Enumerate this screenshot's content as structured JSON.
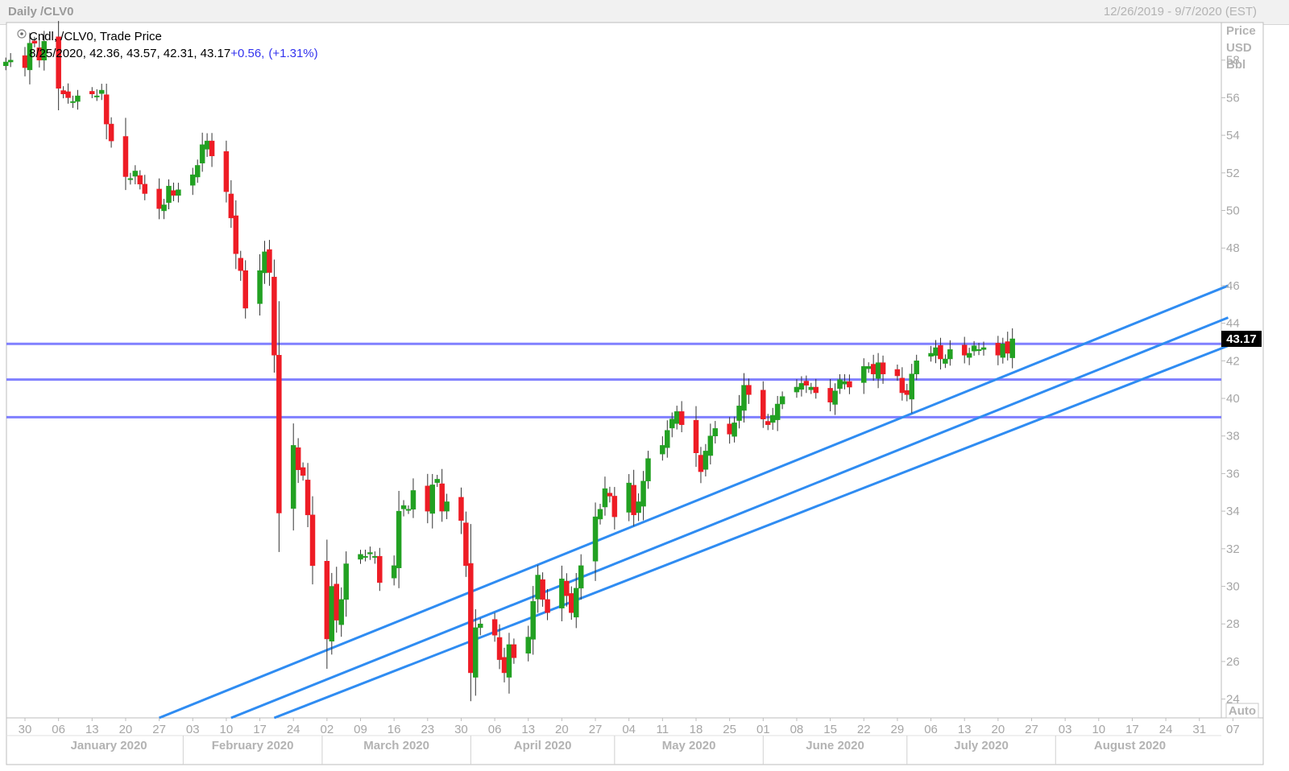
{
  "window": {
    "title": "Daily /CLV0",
    "date_range": "12/26/2019 - 9/7/2020 (EST)"
  },
  "legend": {
    "line1": "Cndl, /CLV0, Trade Price",
    "ohlc": "8/25/2020, 42.36, 43.57, 42.31, 43.17",
    "change": "+0.56,",
    "change_pct": "(+1.31%)"
  },
  "axis": {
    "title_lines": [
      "Price",
      "USD",
      "Bbl"
    ],
    "auto_label": "Auto",
    "last_price_label": "43.17"
  },
  "colors": {
    "up": "#22a122",
    "down": "#ee1c25",
    "hline": "#8080ff",
    "trendline": "#2f8cf2",
    "change": "#3333ee",
    "last_price_bg": "#000000"
  },
  "chart_data": {
    "type": "candlestick",
    "symbol": "/CLV0",
    "ylim": [
      23,
      60
    ],
    "yticks": [
      24,
      26,
      28,
      30,
      32,
      34,
      36,
      38,
      40,
      42,
      44,
      46,
      48,
      50,
      52,
      54,
      56,
      58
    ],
    "x_day_labels": [
      "30",
      "06",
      "13",
      "20",
      "27",
      "03",
      "10",
      "17",
      "24",
      "02",
      "09",
      "16",
      "23",
      "30",
      "06",
      "13",
      "20",
      "27",
      "04",
      "11",
      "18",
      "25",
      "01",
      "08",
      "15",
      "22",
      "29",
      "06",
      "13",
      "20",
      "27",
      "03",
      "10",
      "17",
      "24",
      "31",
      "07"
    ],
    "months": [
      "January 2020",
      "February 2020",
      "March 2020",
      "April 2020",
      "May 2020",
      "June 2020",
      "July 2020",
      "August 2020"
    ],
    "start_date": "2019-12-26",
    "closes": [
      57.9,
      58.0,
      57.6,
      58.9,
      58.9,
      58.0,
      59.0,
      56.5,
      56.2,
      56.0,
      55.8,
      56.1,
      56.2,
      56.1,
      56.4,
      54.6,
      53.7,
      51.8,
      51.7,
      52.1,
      51.4,
      50.9,
      50.1,
      50.3,
      51.3,
      50.8,
      51.1,
      51.9,
      52.4,
      53.5,
      53.7,
      52.9,
      51.0,
      49.6,
      47.7,
      46.8,
      44.8,
      46.8,
      47.8,
      46.7,
      42.3,
      33.9,
      37.5,
      36.2,
      35.9,
      33.8,
      31.1,
      27.2,
      30.0,
      28.2,
      29.3,
      31.2,
      31.7,
      31.6,
      31.8,
      31.6,
      30.2,
      31.1,
      34.0,
      34.3,
      34.1,
      35.1,
      34.0,
      35.4,
      35.7,
      34.0,
      34.5,
      33.5,
      31.1,
      25.4,
      27.8,
      28.0,
      27.4,
      26.1,
      25.4,
      26.9,
      26.2,
      27.3,
      29.2,
      30.6,
      29.3,
      28.6,
      30.4,
      29.5,
      28.6,
      29.9,
      31.1,
      33.7,
      34.1,
      35.2,
      34.8,
      33.7,
      35.5,
      33.8,
      34.5,
      35.6,
      36.8,
      37.5,
      38.3,
      38.9,
      39.3,
      38.6,
      37.1,
      36.1,
      37.2,
      38.0,
      38.4,
      38.1,
      38.7,
      39.6,
      40.7,
      40.2,
      38.9,
      38.6,
      39.1,
      39.7,
      40.1,
      40.6,
      40.8,
      40.7,
      40.6,
      40.3,
      39.8,
      40.4,
      41.0,
      40.9,
      40.6,
      41.7,
      41.7,
      41.3,
      41.9,
      41.3,
      41.2,
      40.3,
      40.2,
      41.3,
      42.0,
      42.4,
      42.7,
      42.1,
      42.1,
      42.6,
      42.3,
      42.4,
      42.8,
      42.6,
      42.7,
      42.3,
      42.9,
      42.4,
      43.17
    ],
    "hlines": [
      42.9,
      41.0,
      39.0
    ],
    "trendlines": [
      {
        "from": {
          "date": "2020-01-27",
          "price": 23.0
        },
        "to": {
          "date": "2020-09-06",
          "price": 46.0
        }
      },
      {
        "from": {
          "date": "2020-02-11",
          "price": 23.0
        },
        "to": {
          "date": "2020-09-06",
          "price": 44.3
        }
      },
      {
        "from": {
          "date": "2020-02-20",
          "price": 23.0
        },
        "to": {
          "date": "2020-09-06",
          "price": 42.8
        }
      }
    ]
  }
}
